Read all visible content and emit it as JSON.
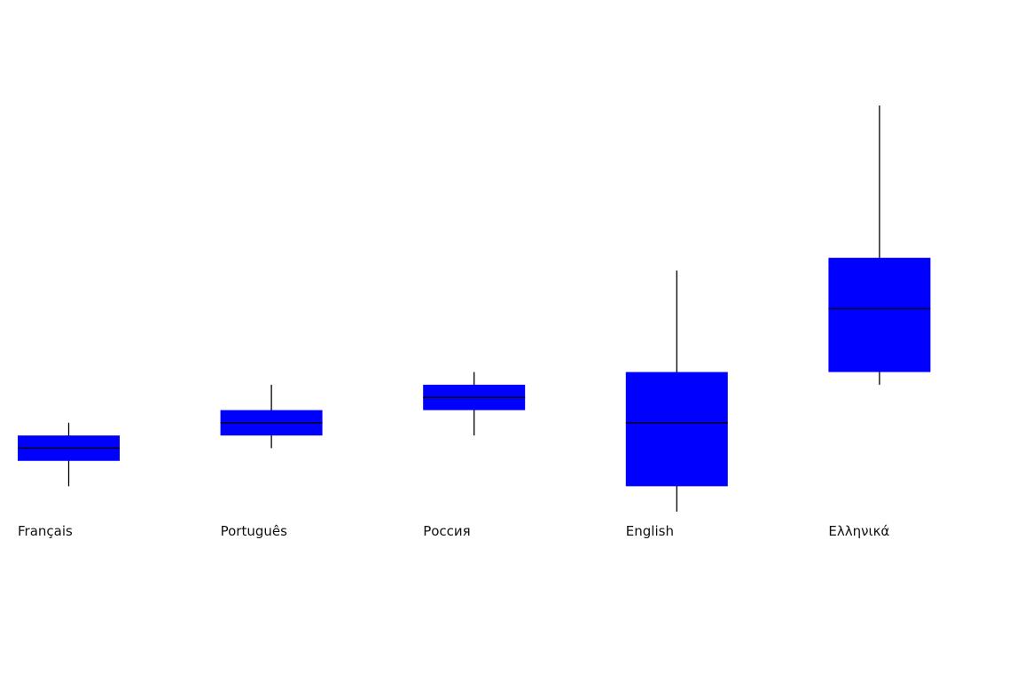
{
  "chart_data": {
    "type": "box",
    "title": "",
    "xlabel": "",
    "ylabel": "",
    "categories": [
      "Français",
      "Português",
      "Россия",
      "English",
      "Ελληνικά"
    ],
    "boxes": [
      {
        "category": "Français",
        "min": 1.0,
        "q1": 2.0,
        "median": 2.5,
        "q3": 3.0,
        "max": 3.5
      },
      {
        "category": "Português",
        "min": 2.5,
        "q1": 3.0,
        "median": 3.5,
        "q3": 4.0,
        "max": 5.0
      },
      {
        "category": "Россия",
        "min": 3.0,
        "q1": 4.0,
        "median": 4.5,
        "q3": 5.0,
        "max": 5.5
      },
      {
        "category": "English",
        "min": 0.0,
        "q1": 1.0,
        "median": 3.5,
        "q3": 5.5,
        "max": 9.5
      },
      {
        "category": "Ελληνικά",
        "min": 5.0,
        "q1": 5.5,
        "median": 8.0,
        "q3": 10.0,
        "max": 16.0
      }
    ],
    "ylim": [
      0,
      16
    ],
    "grid": false,
    "legend": "none",
    "colors": {
      "box_fill": "#0000ff",
      "line": "#000000",
      "label": "#111111"
    }
  }
}
